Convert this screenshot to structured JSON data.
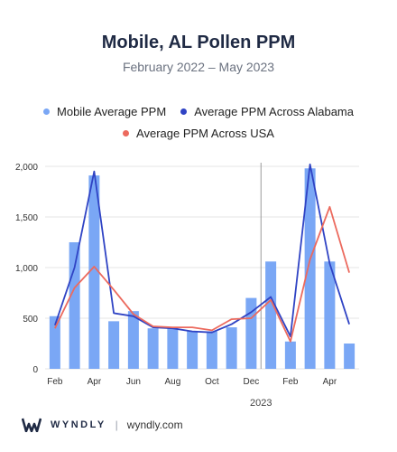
{
  "title": "Mobile, AL Pollen PPM",
  "subtitle": "February 2022 – May 2023",
  "footer": {
    "brand": "WYNDLY",
    "separator": "|",
    "site": "wyndly.com"
  },
  "colors": {
    "bar": "#7aa7f5",
    "alabama": "#2f43c4",
    "usa": "#ec6a5e",
    "divider": "#9a9a9a",
    "grid": "#e6e6e6"
  },
  "chart_data": {
    "type": "bar",
    "categories": [
      "Feb 2022",
      "Mar 2022",
      "Apr 2022",
      "May 2022",
      "Jun 2022",
      "Jul 2022",
      "Aug 2022",
      "Sep 2022",
      "Oct 2022",
      "Nov 2022",
      "Dec 2022",
      "Jan 2023",
      "Feb 2023",
      "Mar 2023",
      "Apr 2023",
      "May 2023"
    ],
    "tick_labels": [
      "Feb",
      "Apr",
      "Jun",
      "Aug",
      "Oct",
      "Dec",
      "Feb",
      "Apr"
    ],
    "tick_indices": [
      0,
      2,
      4,
      6,
      8,
      10,
      12,
      14
    ],
    "year_label": "2023",
    "year_divider_after_index": 10,
    "ylim": [
      0,
      2000
    ],
    "yticks": [
      0,
      500,
      1000,
      1500,
      2000
    ],
    "ytick_labels": [
      "0",
      "500",
      "1,000",
      "1,500",
      "2,000"
    ],
    "grid": true,
    "legend_position": "top",
    "series": [
      {
        "name": "Mobile Average PPM",
        "kind": "bar",
        "values": [
          520,
          1250,
          1910,
          470,
          570,
          400,
          400,
          370,
          370,
          410,
          700,
          1060,
          270,
          1980,
          1060,
          250
        ]
      },
      {
        "name": "Average PPM Across Alabama",
        "kind": "line",
        "values": [
          430,
          1000,
          1950,
          550,
          520,
          410,
          400,
          370,
          360,
          440,
          560,
          710,
          320,
          2020,
          1040,
          440
        ]
      },
      {
        "name": "Average PPM Across USA",
        "kind": "line",
        "values": [
          400,
          800,
          1010,
          780,
          540,
          420,
          410,
          410,
          380,
          490,
          500,
          680,
          270,
          1080,
          1600,
          950
        ]
      }
    ]
  }
}
